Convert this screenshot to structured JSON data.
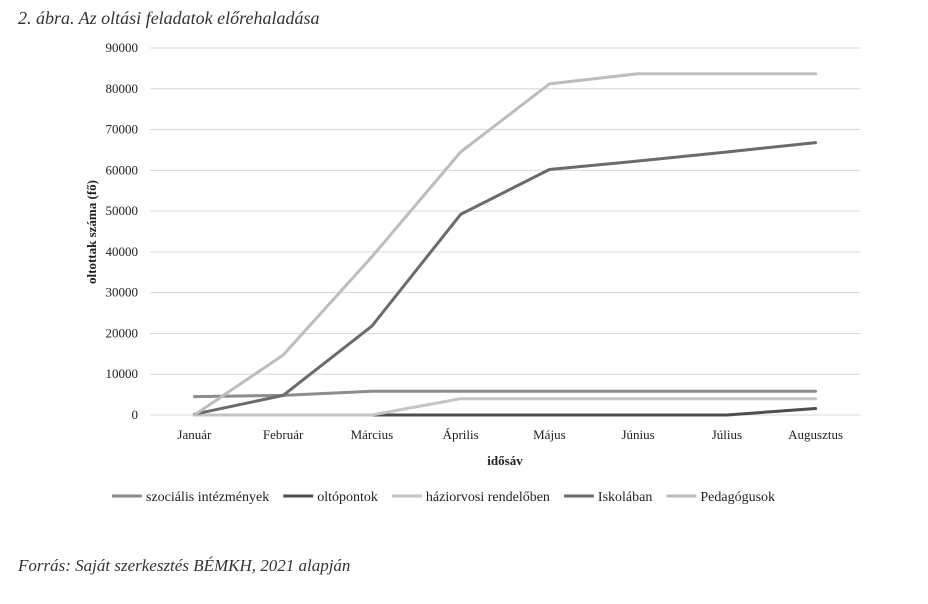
{
  "figure": {
    "title": "2. ábra. Az oltási feladatok előrehaladása",
    "source": "Forrás: Saját szerkesztés BÉMKH, 2021 alapján"
  },
  "chart_data": {
    "type": "line",
    "categories": [
      "Január",
      "Február",
      "Március",
      "Április",
      "Május",
      "Június",
      "Július",
      "Augusztus"
    ],
    "ylim": [
      0,
      90000
    ],
    "yticks": [
      0,
      10000,
      20000,
      30000,
      40000,
      50000,
      60000,
      70000,
      80000,
      90000
    ],
    "xlabel": "idősáv",
    "ylabel": "oltottak száma (fő)",
    "grid": true,
    "legend": "bottom",
    "series": [
      {
        "name": "szociális intézmények",
        "color": "#8c8c8c",
        "values": [
          4500,
          4800,
          5800,
          5800,
          5800,
          5800,
          5800,
          5800
        ]
      },
      {
        "name": "oltópontok",
        "color": "#4d4d4d",
        "values": [
          0,
          0,
          0,
          0,
          0,
          0,
          0,
          1600
        ]
      },
      {
        "name": "háziorvosi rendelőben",
        "color": "#c4c4c4",
        "values": [
          0,
          0,
          0,
          4000,
          4000,
          4000,
          4000,
          4000
        ]
      },
      {
        "name": "Iskolában",
        "color": "#6b6b6b",
        "values": [
          200,
          4800,
          21800,
          49200,
          60200,
          62300,
          64500,
          66800
        ]
      },
      {
        "name": "Pedagógusok",
        "color": "#bdbdbd",
        "values": [
          0,
          14700,
          38800,
          64500,
          81200,
          83700,
          83700,
          83700
        ]
      }
    ]
  }
}
